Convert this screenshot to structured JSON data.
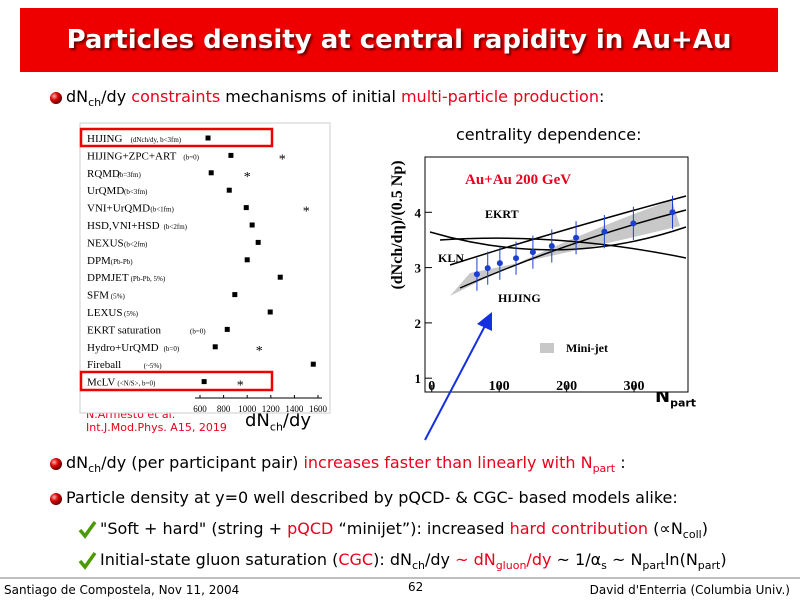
{
  "title": "Particles density at central rapidity in Au+Au",
  "bullets": [
    [
      {
        "text": "dN"
      },
      {
        "text": "ch",
        "sub": true
      },
      {
        "text": "/dy "
      },
      {
        "text": "constraints",
        "color": "#e8001c"
      },
      {
        "text": " mechanisms of initial "
      },
      {
        "text": "multi-particle production",
        "color": "#e8001c"
      },
      {
        "text": ":"
      }
    ],
    [
      {
        "text": "dN"
      },
      {
        "text": "ch",
        "sub": true
      },
      {
        "text": "/dy (per participant pair) "
      },
      {
        "text": "increases faster than linearly with N",
        "color": "#e8001c"
      },
      {
        "text": "part",
        "sub": true,
        "color": "#e8001c"
      },
      {
        "text": " :"
      }
    ],
    [
      {
        "text": "Particle density at y=0 well described by pQCD- & CGC- based models alike:"
      }
    ]
  ],
  "subbullets": [
    [
      {
        "text": "\"Soft + hard\" (string + "
      },
      {
        "text": "pQCD",
        "color": "#e8001c"
      },
      {
        "text": " “minijet”): increased "
      },
      {
        "text": "hard contribution",
        "color": "#e8001c"
      },
      {
        "text": " (∝N"
      },
      {
        "text": "coll",
        "sub": true
      },
      {
        "text": ")"
      }
    ],
    [
      {
        "text": "Initial-state gluon saturation ("
      },
      {
        "text": "CGC",
        "color": "#e8001c"
      },
      {
        "text": "): dN"
      },
      {
        "text": "ch",
        "sub": true
      },
      {
        "text": "/dy "
      },
      {
        "text": "~ dN",
        "color": "#e8001c"
      },
      {
        "text": "gluon",
        "sub": true,
        "color": "#e8001c"
      },
      {
        "text": "/dy",
        "color": "#e8001c"
      },
      {
        "text": " ~ 1/α"
      },
      {
        "text": "s",
        "sub": true
      },
      {
        "text": " ~ N"
      },
      {
        "text": "part",
        "sub": true
      },
      {
        "text": "ln(N"
      },
      {
        "text": "part",
        "sub": true
      },
      {
        "text": ")"
      }
    ]
  ],
  "left_plot": {
    "models": [
      {
        "name": "HIJING",
        "note": "(dNch/dy, b<3fm)",
        "value": 668
      },
      {
        "name": "HIJING+ZPC+ART",
        "note": "(b=0)",
        "value": 862,
        "star": 1297
      },
      {
        "name": "RQMD",
        "note": "(b=3fm)",
        "value": 695,
        "star": 1000
      },
      {
        "name": "UrQMD",
        "note": "(b<3fm)",
        "value": 848
      },
      {
        "name": "VNI+UrQMD",
        "note": "(b<1fm)",
        "value": 992,
        "star": 1500
      },
      {
        "name": "HSD,VNI+HSD",
        "note": "(b<2fm)",
        "value": 1042
      },
      {
        "name": "NEXUS",
        "note": "(b<2fm)",
        "value": 1093
      },
      {
        "name": "DPM",
        "note": "(Pb-Pb)",
        "value": 1000
      },
      {
        "name": "DPMJET",
        "note": "(Pb-Pb, 5%)",
        "value": 1280
      },
      {
        "name": "SFM",
        "note": "(5%)",
        "value": 895
      },
      {
        "name": "LEXUS",
        "note": "(5%)",
        "value": 1195
      },
      {
        "name": "EKRT saturation",
        "note": "(b=0)",
        "value": 831
      },
      {
        "name": "Hydro+UrQMD",
        "note": "(b=0)",
        "value": 729,
        "star": 1102
      },
      {
        "name": "Fireball",
        "note": "(~5%)",
        "value": 1560
      },
      {
        "name": "McLV",
        "note": "(<N/S>, b=0)",
        "value": 635,
        "star": 941
      }
    ],
    "xlim": [
      600,
      1600
    ],
    "xticks": [
      600,
      800,
      1000,
      1200,
      1400,
      1600
    ],
    "xlabel": [
      {
        "text": "dN"
      },
      {
        "text": "ch",
        "sub": true
      },
      {
        "text": "/dy"
      }
    ],
    "citation": [
      "N.Armesto et al.",
      "Int.J.Mod.Phys. A15, 2019"
    ]
  },
  "right_plot": {
    "subtitle": "centrality dependence:",
    "system": "Au+Au 200 GeV",
    "x": [
      67,
      83,
      101,
      125,
      150,
      178,
      214,
      256,
      299,
      357
    ],
    "y": [
      2.88,
      2.99,
      3.08,
      3.17,
      3.28,
      3.39,
      3.54,
      3.65,
      3.8,
      4.0
    ],
    "err": [
      0.3,
      0.3,
      0.3,
      0.3,
      0.3,
      0.3,
      0.3,
      0.3,
      0.3,
      0.3
    ],
    "color": "#1c3fd0",
    "xlim": [
      -10,
      380
    ],
    "xticks": [
      0,
      100,
      200,
      300
    ],
    "ylim": [
      0.75,
      5
    ],
    "yticks": [
      1,
      2,
      3,
      4
    ],
    "curve_labels": [
      "EKRT",
      "KLN",
      "HIJING",
      "Mini-jet"
    ],
    "ylabel": "(dNch/dη)/(0.5 Np)",
    "xlabel": [
      {
        "text": "N"
      },
      {
        "text": "part",
        "sub": true
      }
    ]
  },
  "footer": {
    "left": "Santiago de Compostela, Nov 11, 2004",
    "page": "62",
    "right": "David d'Enterria (Columbia Univ.)"
  }
}
